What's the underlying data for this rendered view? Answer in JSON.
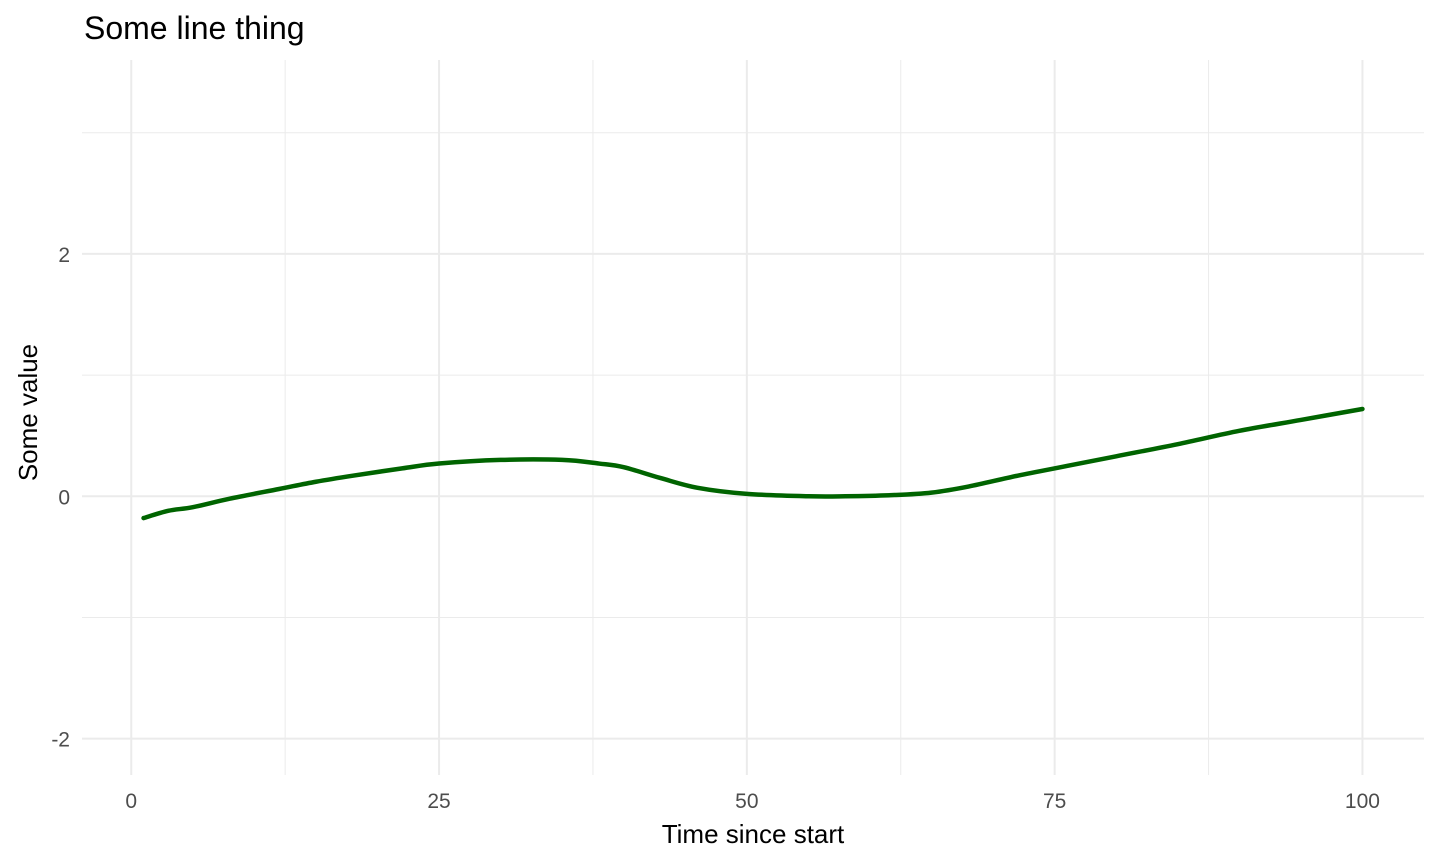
{
  "chart_data": {
    "type": "line",
    "title": "Some line thing",
    "xlabel": "Time since start",
    "ylabel": "Some value",
    "xlim": [
      -4,
      105
    ],
    "ylim": [
      -2.3,
      3.6
    ],
    "x_ticks": [
      0,
      25,
      50,
      75,
      100
    ],
    "x_tick_labels": [
      "0",
      "25",
      "50",
      "75",
      "100"
    ],
    "x_minor_ticks": [
      12.5,
      37.5,
      62.5,
      87.5
    ],
    "y_ticks": [
      -2,
      0,
      2
    ],
    "y_tick_labels": [
      "-2",
      "0",
      "2"
    ],
    "y_minor_ticks": [
      -1,
      1,
      3
    ],
    "grid": true,
    "colors": {
      "line": "#006400",
      "grid": "#ebebeb",
      "tick_text": "#4d4d4d"
    },
    "series": [
      {
        "x": [
          1,
          3,
          5,
          8,
          12,
          15,
          18,
          22,
          25,
          30,
          35,
          38,
          40,
          43,
          46,
          50,
          55,
          58,
          62,
          65,
          68,
          72,
          76,
          80,
          85,
          90,
          95,
          100
        ],
        "y": [
          -0.18,
          -0.12,
          -0.09,
          -0.02,
          0.06,
          0.12,
          0.17,
          0.23,
          0.27,
          0.3,
          0.3,
          0.27,
          0.24,
          0.15,
          0.07,
          0.02,
          0.0,
          0.0,
          0.01,
          0.03,
          0.08,
          0.17,
          0.25,
          0.33,
          0.43,
          0.54,
          0.63,
          0.72
        ]
      }
    ]
  }
}
